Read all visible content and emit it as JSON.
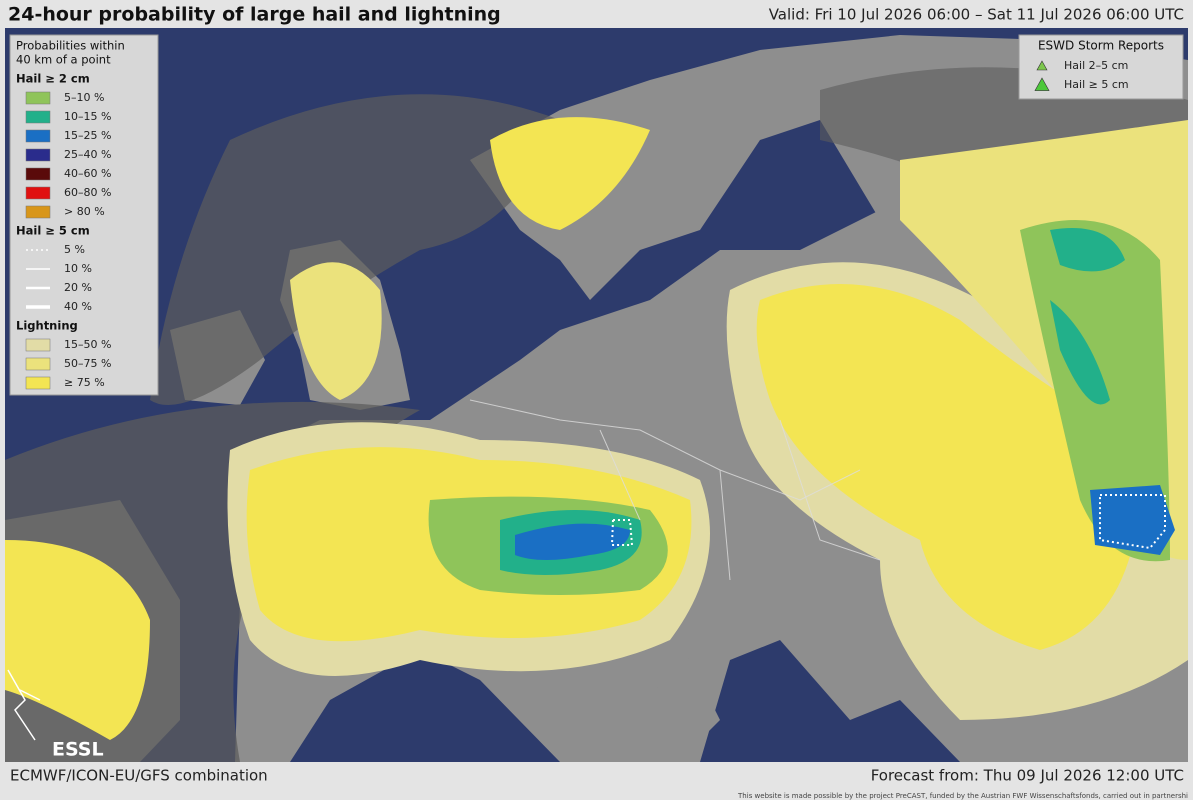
{
  "header": {
    "title": "24-hour probability of large hail and lightning",
    "valid": "Valid: Fri 10 Jul 2026 06:00 – Sat 11 Jul 2026 06:00 UTC"
  },
  "legend": {
    "heading_line1": "Probabilities within",
    "heading_line2": "40 km of a point",
    "groups": [
      {
        "title": "Hail ≥ 2 cm",
        "items": [
          {
            "label": "5–10 %",
            "color": "#8fc45a"
          },
          {
            "label": "10–15 %",
            "color": "#22b08a"
          },
          {
            "label": "15–25 %",
            "color": "#1a6fc4"
          },
          {
            "label": "25–40 %",
            "color": "#2a2c8c"
          },
          {
            "label": "40–60 %",
            "color": "#5a0a0a"
          },
          {
            "label": "60–80 %",
            "color": "#e01010"
          },
          {
            "label": "> 80 %",
            "color": "#d8961a"
          }
        ]
      },
      {
        "title": "Hail ≥ 5 cm",
        "items": [
          {
            "label": "5 %"
          },
          {
            "label": "10 %"
          },
          {
            "label": "20 %"
          },
          {
            "label": "40 %"
          }
        ]
      },
      {
        "title": "Lightning",
        "items": [
          {
            "label": "15–50 %",
            "color": "#e2dca6"
          },
          {
            "label": "50–75 %",
            "color": "#ebe27c"
          },
          {
            "label": "≥ 75 %",
            "color": "#f3e553"
          }
        ]
      }
    ]
  },
  "reports": {
    "title": "ESWD Storm Reports",
    "items": [
      {
        "label": "Hail 2–5 cm",
        "color": "#7cc64c"
      },
      {
        "label": "Hail ≥ 5 cm",
        "color": "#4cc83a"
      }
    ]
  },
  "logo": "ESSL",
  "footer": {
    "source": "ECMWF/ICON-EU/GFS combination",
    "forecast": "Forecast from: Thu 09 Jul 2026 12:00 UTC",
    "credit": "This website is made possible by the project PreCAST, funded by the Austrian FWF Wissenschaftsfonds, carried out in partnershi"
  }
}
